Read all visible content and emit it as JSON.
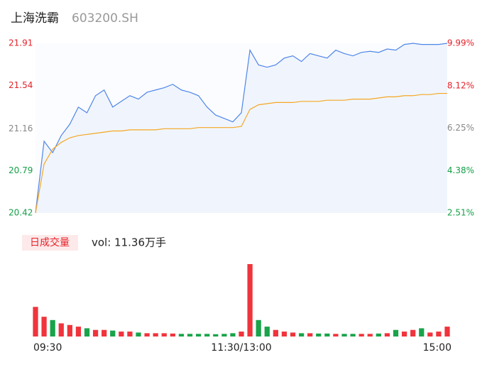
{
  "title": "上海洗霸",
  "subtitle": "603200.SH",
  "chart_data": [
    {
      "type": "line",
      "categories": [
        "09:30",
        null,
        null,
        null,
        null,
        null,
        null,
        null,
        null,
        null,
        null,
        null,
        null,
        null,
        null,
        null,
        null,
        null,
        null,
        null,
        null,
        null,
        null,
        null,
        "11:30/13:00",
        null,
        null,
        null,
        null,
        null,
        null,
        null,
        null,
        null,
        null,
        null,
        null,
        null,
        null,
        null,
        null,
        null,
        null,
        null,
        null,
        null,
        null,
        null,
        "15:00"
      ],
      "series": [
        {
          "color": "#4f86e8",
          "values": [
            20.42,
            21.05,
            20.95,
            21.1,
            21.2,
            21.35,
            21.3,
            21.45,
            21.5,
            21.35,
            21.4,
            21.45,
            21.42,
            21.48,
            21.5,
            21.52,
            21.55,
            21.5,
            21.48,
            21.45,
            21.35,
            21.28,
            21.25,
            21.22,
            21.3,
            21.85,
            21.72,
            21.7,
            21.72,
            21.78,
            21.8,
            21.75,
            21.82,
            21.8,
            21.78,
            21.85,
            21.82,
            21.8,
            21.83,
            21.84,
            21.83,
            21.86,
            21.85,
            21.9,
            21.91,
            21.9,
            21.9,
            21.9,
            21.91
          ]
        },
        {
          "color": "#f5a623",
          "values": [
            20.42,
            20.85,
            20.98,
            21.04,
            21.08,
            21.1,
            21.11,
            21.12,
            21.13,
            21.14,
            21.14,
            21.15,
            21.15,
            21.15,
            21.15,
            21.16,
            21.16,
            21.16,
            21.16,
            21.17,
            21.17,
            21.17,
            21.17,
            21.17,
            21.18,
            21.33,
            21.37,
            21.38,
            21.39,
            21.39,
            21.39,
            21.4,
            21.4,
            21.4,
            21.41,
            21.41,
            21.41,
            21.42,
            21.42,
            21.42,
            21.43,
            21.44,
            21.44,
            21.45,
            21.45,
            21.46,
            21.46,
            21.47,
            21.47
          ]
        }
      ],
      "ylim": [
        20.42,
        21.91
      ],
      "yticks": [
        21.91,
        21.54,
        21.16,
        20.79,
        20.42
      ],
      "y2lim": [
        2.51,
        9.99
      ],
      "y2ticks": [
        {
          "value": 9.99,
          "label": "9.99%"
        },
        {
          "value": 8.12,
          "label": "8.12%"
        },
        {
          "value": 6.25,
          "label": "6.25%"
        },
        {
          "value": 4.38,
          "label": "4.38%"
        },
        {
          "value": 2.51,
          "label": "2.51%"
        }
      ],
      "tick_colors": [
        "#e6222a",
        "#e6222a",
        "#888888",
        "#14a048",
        "#14a048"
      ]
    },
    {
      "type": "bar",
      "title": "日成交量",
      "annotation": "vol: 11.36万手",
      "values": [
        0.9,
        0.6,
        0.5,
        0.4,
        0.35,
        0.3,
        0.25,
        0.2,
        0.2,
        0.18,
        0.15,
        0.15,
        0.12,
        0.1,
        0.1,
        0.1,
        0.09,
        0.08,
        0.08,
        0.08,
        0.08,
        0.07,
        0.08,
        0.1,
        0.15,
        2.2,
        0.5,
        0.3,
        0.2,
        0.15,
        0.12,
        0.1,
        0.1,
        0.09,
        0.09,
        0.08,
        0.08,
        0.08,
        0.08,
        0.08,
        0.09,
        0.1,
        0.2,
        0.15,
        0.2,
        0.25,
        0.12,
        0.15,
        0.3
      ],
      "ylim": [
        0,
        2.2
      ],
      "up_color": "#f0343c",
      "down_color": "#1aa34a"
    }
  ]
}
